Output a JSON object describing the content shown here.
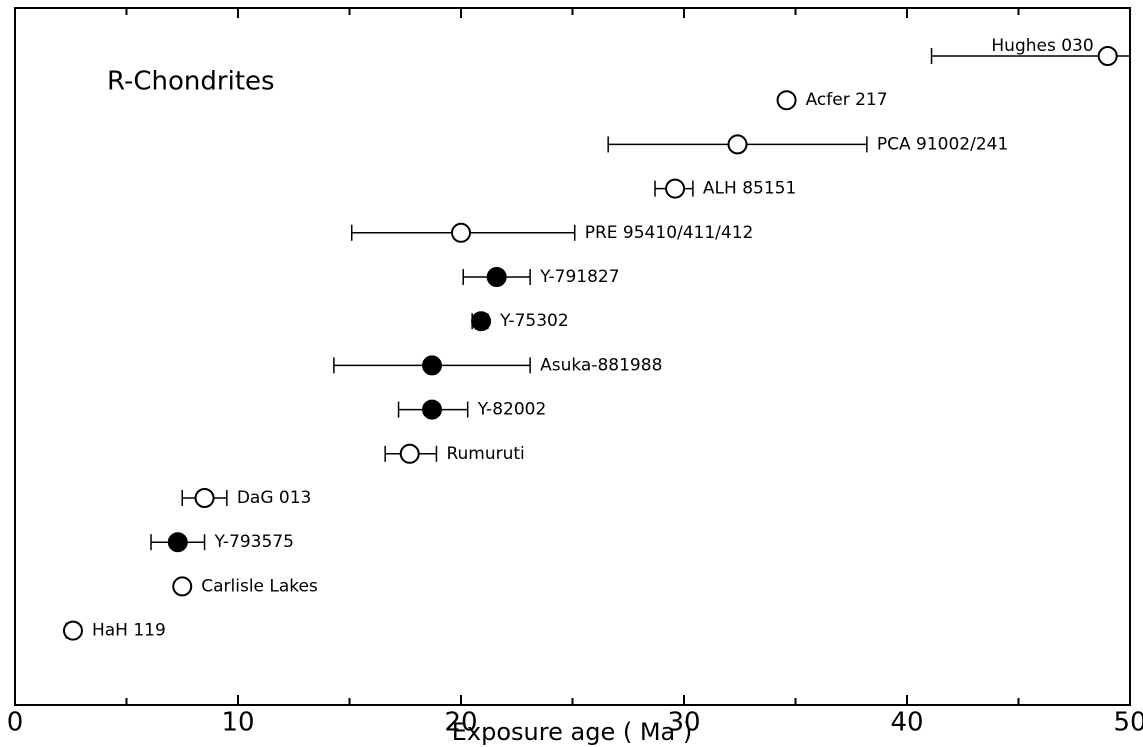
{
  "chart_data": {
    "type": "errorbar-scatter",
    "title": "R-Chondrites",
    "x_label": "Exposure age ( Ma )",
    "xlim": [
      0,
      50
    ],
    "xticks": [
      0,
      10,
      20,
      30,
      40,
      50
    ],
    "minor_xticks": [
      5,
      15,
      25,
      35,
      45
    ],
    "color": "#000000",
    "points": [
      {
        "name": "Hughes 030",
        "x": 49,
        "low": 41.1,
        "high": 50,
        "marker": "open"
      },
      {
        "name": "Acfer 217",
        "x": 34.6,
        "low": null,
        "high": null,
        "marker": "open"
      },
      {
        "name": "PCA 91002/241",
        "x": 32.4,
        "low": 26.6,
        "high": 38.2,
        "marker": "open"
      },
      {
        "name": "ALH 85151",
        "x": 29.6,
        "low": 28.7,
        "high": 30.4,
        "marker": "open"
      },
      {
        "name": "PRE 95410/411/412",
        "x": 20,
        "low": 15.1,
        "high": 25.1,
        "marker": "open"
      },
      {
        "name": "Y-791827",
        "x": 21.6,
        "low": 20.1,
        "high": 23.1,
        "marker": "filled"
      },
      {
        "name": "Y-75302",
        "x": 20.9,
        "low": 20.5,
        "high": 21.2,
        "marker": "filled"
      },
      {
        "name": "Asuka-881988",
        "x": 18.7,
        "low": 14.3,
        "high": 23.1,
        "marker": "filled"
      },
      {
        "name": "Y-82002",
        "x": 18.7,
        "low": 17.2,
        "high": 20.3,
        "marker": "filled"
      },
      {
        "name": "Rumuruti",
        "x": 17.7,
        "low": 16.6,
        "high": 18.9,
        "marker": "open"
      },
      {
        "name": "DaG 013",
        "x": 8.5,
        "low": 7.5,
        "high": 9.5,
        "marker": "open"
      },
      {
        "name": "Y-793575",
        "x": 7.3,
        "low": 6.1,
        "high": 8.5,
        "marker": "filled"
      },
      {
        "name": "Carlisle Lakes",
        "x": 7.5,
        "low": null,
        "high": null,
        "marker": "open"
      },
      {
        "name": "HaH 119",
        "x": 2.6,
        "low": 2.3,
        "high": 2.8,
        "marker": "open"
      }
    ]
  }
}
